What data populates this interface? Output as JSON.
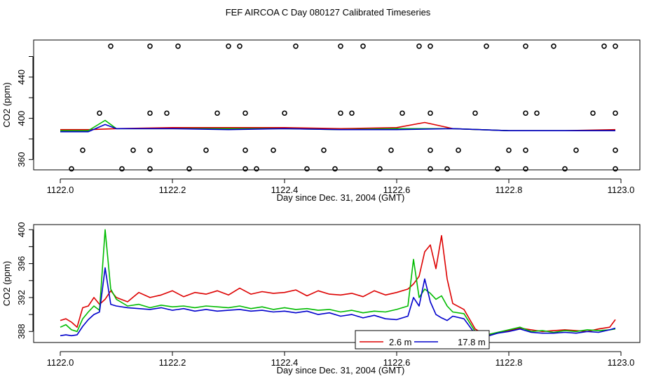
{
  "title": "FEF AIRCOA C  Day 080127  Calibrated Timeseries",
  "chart_data": [
    {
      "type": "scatter+line",
      "title": "FEF AIRCOA C  Day 080127  Calibrated Timeseries",
      "xlabel": "Day since Dec. 31, 2004 (GMT)",
      "ylabel": "CO2 (ppm)",
      "xlim": [
        1122.0,
        1123.0
      ],
      "ylim": [
        350,
        476
      ],
      "x_ticks": [
        1122.0,
        1122.2,
        1122.4,
        1122.6,
        1122.8,
        1123.0
      ],
      "x_tick_labels": [
        "1122.0",
        "1122.2",
        "1122.4",
        "1122.6",
        "1122.8",
        "1123.0"
      ],
      "y_ticks": [
        360,
        380,
        400,
        420,
        440,
        460
      ],
      "y_tick_labels": [
        "360",
        "",
        "400",
        "",
        "440",
        ""
      ],
      "series": [
        {
          "color": "#dd0000",
          "x": [
            1122.0,
            1122.05,
            1122.1,
            1122.2,
            1122.3,
            1122.4,
            1122.5,
            1122.6,
            1122.65,
            1122.7,
            1122.8,
            1122.9,
            1122.99
          ],
          "y": [
            389,
            389,
            390,
            391,
            391,
            391,
            390,
            391,
            396,
            390,
            388,
            388,
            389
          ]
        },
        {
          "color": "#00bb00",
          "x": [
            1122.0,
            1122.05,
            1122.08,
            1122.1,
            1122.2,
            1122.3,
            1122.4,
            1122.5,
            1122.6,
            1122.7,
            1122.8,
            1122.9,
            1122.99
          ],
          "y": [
            388,
            388,
            398,
            390,
            390,
            390,
            390,
            389,
            390,
            390,
            388,
            388,
            388
          ]
        },
        {
          "color": "#0000cc",
          "x": [
            1122.0,
            1122.05,
            1122.08,
            1122.1,
            1122.2,
            1122.3,
            1122.4,
            1122.5,
            1122.6,
            1122.7,
            1122.8,
            1122.9,
            1122.99
          ],
          "y": [
            387,
            387,
            394,
            390,
            390,
            389,
            390,
            389,
            389,
            390,
            388,
            388,
            388
          ]
        }
      ],
      "points": {
        "x": [
          1122.09,
          1122.16,
          1122.21,
          1122.3,
          1122.32,
          1122.42,
          1122.5,
          1122.54,
          1122.64,
          1122.66,
          1122.76,
          1122.83,
          1122.88,
          1122.97,
          1122.99,
          1122.07,
          1122.16,
          1122.19,
          1122.28,
          1122.33,
          1122.4,
          1122.5,
          1122.52,
          1122.61,
          1122.66,
          1122.74,
          1122.83,
          1122.85,
          1122.95,
          1122.99,
          1122.04,
          1122.13,
          1122.16,
          1122.26,
          1122.33,
          1122.38,
          1122.47,
          1122.59,
          1122.66,
          1122.71,
          1122.8,
          1122.83,
          1122.92,
          1122.99,
          1122.02,
          1122.11,
          1122.16,
          1122.23,
          1122.33,
          1122.35,
          1122.44,
          1122.49,
          1122.57,
          1122.66,
          1122.69,
          1122.78,
          1122.83,
          1122.9,
          1122.99
        ],
        "y": [
          470,
          470,
          470,
          470,
          470,
          470,
          470,
          470,
          470,
          470,
          470,
          470,
          470,
          470,
          470,
          405,
          405,
          405,
          405,
          405,
          405,
          405,
          405,
          405,
          405,
          405,
          405,
          405,
          405,
          405,
          369,
          369,
          369,
          369,
          369,
          369,
          369,
          369,
          369,
          369,
          369,
          369,
          369,
          369,
          351,
          351,
          351,
          351,
          351,
          351,
          351,
          351,
          351,
          351,
          351,
          351,
          351,
          351,
          351
        ]
      }
    },
    {
      "type": "line",
      "xlabel": "Day since Dec. 31, 2004 (GMT)",
      "ylabel": "CO2 (ppm)",
      "xlim": [
        1122.0,
        1123.0
      ],
      "ylim": [
        386.7,
        400.6
      ],
      "x_ticks": [
        1122.0,
        1122.2,
        1122.4,
        1122.6,
        1122.8,
        1123.0
      ],
      "x_tick_labels": [
        "1122.0",
        "1122.2",
        "1122.4",
        "1122.6",
        "1122.8",
        "1123.0"
      ],
      "y_ticks": [
        388,
        390,
        392,
        394,
        396,
        398,
        400
      ],
      "y_tick_labels": [
        "388",
        "",
        "392",
        "",
        "396",
        "",
        "400"
      ],
      "legend": {
        "position": "bottom-center",
        "entries": [
          "2.6 m",
          "17.8 m"
        ]
      },
      "series": [
        {
          "name": "2.6 m",
          "color": "#dd0000",
          "x": [
            1122.0,
            1122.01,
            1122.02,
            1122.03,
            1122.04,
            1122.05,
            1122.06,
            1122.07,
            1122.08,
            1122.09,
            1122.1,
            1122.12,
            1122.14,
            1122.16,
            1122.18,
            1122.2,
            1122.22,
            1122.24,
            1122.26,
            1122.28,
            1122.3,
            1122.32,
            1122.34,
            1122.36,
            1122.38,
            1122.4,
            1122.42,
            1122.44,
            1122.46,
            1122.48,
            1122.5,
            1122.52,
            1122.54,
            1122.56,
            1122.58,
            1122.6,
            1122.62,
            1122.63,
            1122.64,
            1122.65,
            1122.66,
            1122.67,
            1122.68,
            1122.69,
            1122.7,
            1122.72,
            1122.74,
            1122.76,
            1122.78,
            1122.8,
            1122.82,
            1122.84,
            1122.86,
            1122.88,
            1122.9,
            1122.92,
            1122.94,
            1122.96,
            1122.98,
            1122.99
          ],
          "y": [
            389.3,
            389.5,
            389.1,
            388.5,
            390.8,
            391.0,
            392.0,
            391.2,
            391.8,
            392.8,
            392.0,
            391.5,
            392.6,
            392.0,
            392.3,
            392.8,
            392.1,
            392.6,
            392.4,
            392.8,
            392.3,
            393.1,
            392.4,
            392.7,
            392.5,
            392.6,
            392.9,
            392.2,
            392.8,
            392.4,
            392.3,
            392.5,
            392.1,
            392.8,
            392.3,
            392.6,
            393.0,
            393.6,
            394.5,
            397.4,
            398.2,
            395.4,
            399.3,
            394.2,
            391.3,
            390.6,
            388.3,
            387.5,
            387.8,
            388.1,
            388.4,
            388.2,
            388.0,
            388.1,
            388.2,
            388.1,
            388.0,
            388.3,
            388.5,
            389.4
          ]
        },
        {
          "name": "",
          "color": "#00bb00",
          "x": [
            1122.0,
            1122.01,
            1122.02,
            1122.03,
            1122.04,
            1122.05,
            1122.06,
            1122.07,
            1122.08,
            1122.09,
            1122.1,
            1122.12,
            1122.14,
            1122.16,
            1122.18,
            1122.2,
            1122.22,
            1122.24,
            1122.26,
            1122.28,
            1122.3,
            1122.32,
            1122.34,
            1122.36,
            1122.38,
            1122.4,
            1122.42,
            1122.44,
            1122.46,
            1122.48,
            1122.5,
            1122.52,
            1122.54,
            1122.56,
            1122.58,
            1122.6,
            1122.62,
            1122.63,
            1122.64,
            1122.65,
            1122.66,
            1122.67,
            1122.68,
            1122.69,
            1122.7,
            1122.72,
            1122.74,
            1122.76,
            1122.78,
            1122.8,
            1122.82,
            1122.84,
            1122.86,
            1122.88,
            1122.9,
            1122.92,
            1122.94,
            1122.96,
            1122.98,
            1122.99
          ],
          "y": [
            388.5,
            388.8,
            388.2,
            388.0,
            389.5,
            390.3,
            391.0,
            390.5,
            400.0,
            393.0,
            391.8,
            391.0,
            391.2,
            390.8,
            391.1,
            390.9,
            391.0,
            390.8,
            391.0,
            390.9,
            390.8,
            391.0,
            390.7,
            390.9,
            390.6,
            390.8,
            390.6,
            390.7,
            390.5,
            390.6,
            390.3,
            390.5,
            390.2,
            390.4,
            390.3,
            390.6,
            391.0,
            396.5,
            392.0,
            393.0,
            392.5,
            391.8,
            392.2,
            391.0,
            390.3,
            390.1,
            388.0,
            387.6,
            387.9,
            388.2,
            388.5,
            388.0,
            388.1,
            387.9,
            388.1,
            388.0,
            388.2,
            388.1,
            388.2,
            388.3
          ]
        },
        {
          "name": "17.8 m",
          "color": "#0000cc",
          "x": [
            1122.0,
            1122.01,
            1122.02,
            1122.03,
            1122.04,
            1122.05,
            1122.06,
            1122.07,
            1122.08,
            1122.09,
            1122.1,
            1122.12,
            1122.14,
            1122.16,
            1122.18,
            1122.2,
            1122.22,
            1122.24,
            1122.26,
            1122.28,
            1122.3,
            1122.32,
            1122.34,
            1122.36,
            1122.38,
            1122.4,
            1122.42,
            1122.44,
            1122.46,
            1122.48,
            1122.5,
            1122.52,
            1122.54,
            1122.56,
            1122.58,
            1122.6,
            1122.62,
            1122.63,
            1122.64,
            1122.65,
            1122.66,
            1122.67,
            1122.68,
            1122.69,
            1122.7,
            1122.72,
            1122.74,
            1122.76,
            1122.78,
            1122.8,
            1122.82,
            1122.84,
            1122.86,
            1122.88,
            1122.9,
            1122.92,
            1122.94,
            1122.96,
            1122.98,
            1122.99
          ],
          "y": [
            387.5,
            387.6,
            387.5,
            387.6,
            388.6,
            389.4,
            390.0,
            390.3,
            395.5,
            391.2,
            391.0,
            390.8,
            390.7,
            390.6,
            390.8,
            390.5,
            390.7,
            390.4,
            390.6,
            390.4,
            390.5,
            390.6,
            390.4,
            390.5,
            390.3,
            390.4,
            390.2,
            390.4,
            390.0,
            390.2,
            389.8,
            390.0,
            389.6,
            389.9,
            389.5,
            389.4,
            389.8,
            392.0,
            391.0,
            394.2,
            391.5,
            390.0,
            389.6,
            389.3,
            389.8,
            389.5,
            387.7,
            387.4,
            387.8,
            388.0,
            388.3,
            387.9,
            387.8,
            387.8,
            387.9,
            387.8,
            388.0,
            387.9,
            388.2,
            388.4
          ]
        }
      ]
    }
  ]
}
